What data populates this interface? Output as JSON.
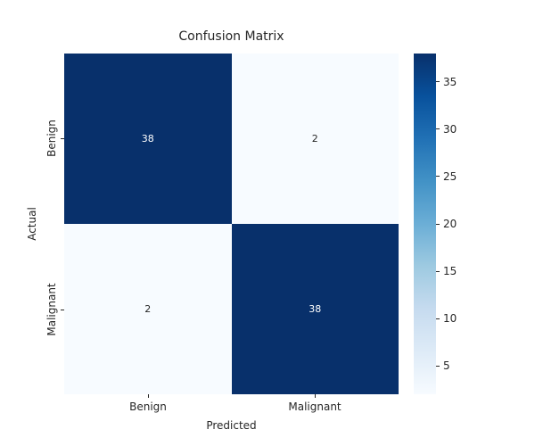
{
  "text_color": "#262626",
  "chart_data": {
    "type": "heatmap",
    "title": "Confusion Matrix",
    "xlabel": "Predicted",
    "ylabel": "Actual",
    "x_tick_labels": [
      "Benign",
      "Malignant"
    ],
    "y_tick_labels": [
      "Benign",
      "Malignant"
    ],
    "values": [
      [
        38,
        2
      ],
      [
        2,
        38
      ]
    ],
    "annotations": [
      [
        "38",
        "2"
      ],
      [
        "2",
        "38"
      ]
    ],
    "colormap": "Blues",
    "cell_colors": [
      [
        "#08306b",
        "#f7fbff"
      ],
      [
        "#f7fbff",
        "#08306b"
      ]
    ],
    "annot_colors": [
      [
        "#ffffff",
        "#262626"
      ],
      [
        "#262626",
        "#ffffff"
      ]
    ],
    "colorbar": {
      "vmin": 2,
      "vmax": 38,
      "ticks": [
        5,
        10,
        15,
        20,
        25,
        30,
        35
      ],
      "gradient_stops": [
        "#f7fbff",
        "#deebf7",
        "#c6dbef",
        "#9ecae1",
        "#6baed6",
        "#4292c6",
        "#2171b5",
        "#08519c",
        "#08306b"
      ]
    }
  }
}
